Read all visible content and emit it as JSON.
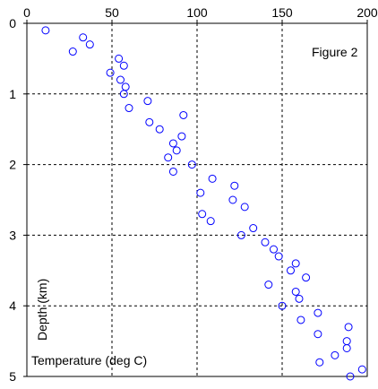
{
  "chart_data": {
    "type": "scatter",
    "title": "",
    "annotation": "Figure 2",
    "xlabel": "Temperature (deg C)",
    "ylabel": "Depth (km)",
    "x_axis_position": "top",
    "y_inverted": true,
    "xlim": [
      0,
      200
    ],
    "ylim": [
      0,
      5
    ],
    "xticks": [
      0,
      50,
      100,
      150,
      200
    ],
    "yticks": [
      0,
      1,
      2,
      3,
      4,
      5
    ],
    "grid": "dashed",
    "marker": "open-circle",
    "marker_color": "#0000ff",
    "series": [
      {
        "points": [
          [
            11,
            0.1
          ],
          [
            33,
            0.2
          ],
          [
            37,
            0.3
          ],
          [
            27,
            0.4
          ],
          [
            54,
            0.5
          ],
          [
            57,
            0.6
          ],
          [
            49,
            0.7
          ],
          [
            55,
            0.8
          ],
          [
            58,
            0.9
          ],
          [
            57,
            1.0
          ],
          [
            71,
            1.1
          ],
          [
            60,
            1.2
          ],
          [
            92,
            1.3
          ],
          [
            72,
            1.4
          ],
          [
            78,
            1.5
          ],
          [
            91,
            1.6
          ],
          [
            86,
            1.7
          ],
          [
            88,
            1.8
          ],
          [
            83,
            1.9
          ],
          [
            97,
            2.0
          ],
          [
            86,
            2.1
          ],
          [
            109,
            2.2
          ],
          [
            122,
            2.3
          ],
          [
            102,
            2.4
          ],
          [
            121,
            2.5
          ],
          [
            128,
            2.6
          ],
          [
            103,
            2.7
          ],
          [
            108,
            2.8
          ],
          [
            133,
            2.9
          ],
          [
            126,
            3.0
          ],
          [
            140,
            3.1
          ],
          [
            145,
            3.2
          ],
          [
            148,
            3.3
          ],
          [
            158,
            3.4
          ],
          [
            155,
            3.5
          ],
          [
            164,
            3.6
          ],
          [
            142,
            3.7
          ],
          [
            158,
            3.8
          ],
          [
            160,
            3.9
          ],
          [
            150,
            4.0
          ],
          [
            171,
            4.1
          ],
          [
            161,
            4.2
          ],
          [
            189,
            4.3
          ],
          [
            171,
            4.4
          ],
          [
            188,
            4.5
          ],
          [
            188,
            4.6
          ],
          [
            181,
            4.7
          ],
          [
            172,
            4.8
          ],
          [
            197,
            4.9
          ],
          [
            190,
            5.0
          ]
        ]
      }
    ]
  }
}
